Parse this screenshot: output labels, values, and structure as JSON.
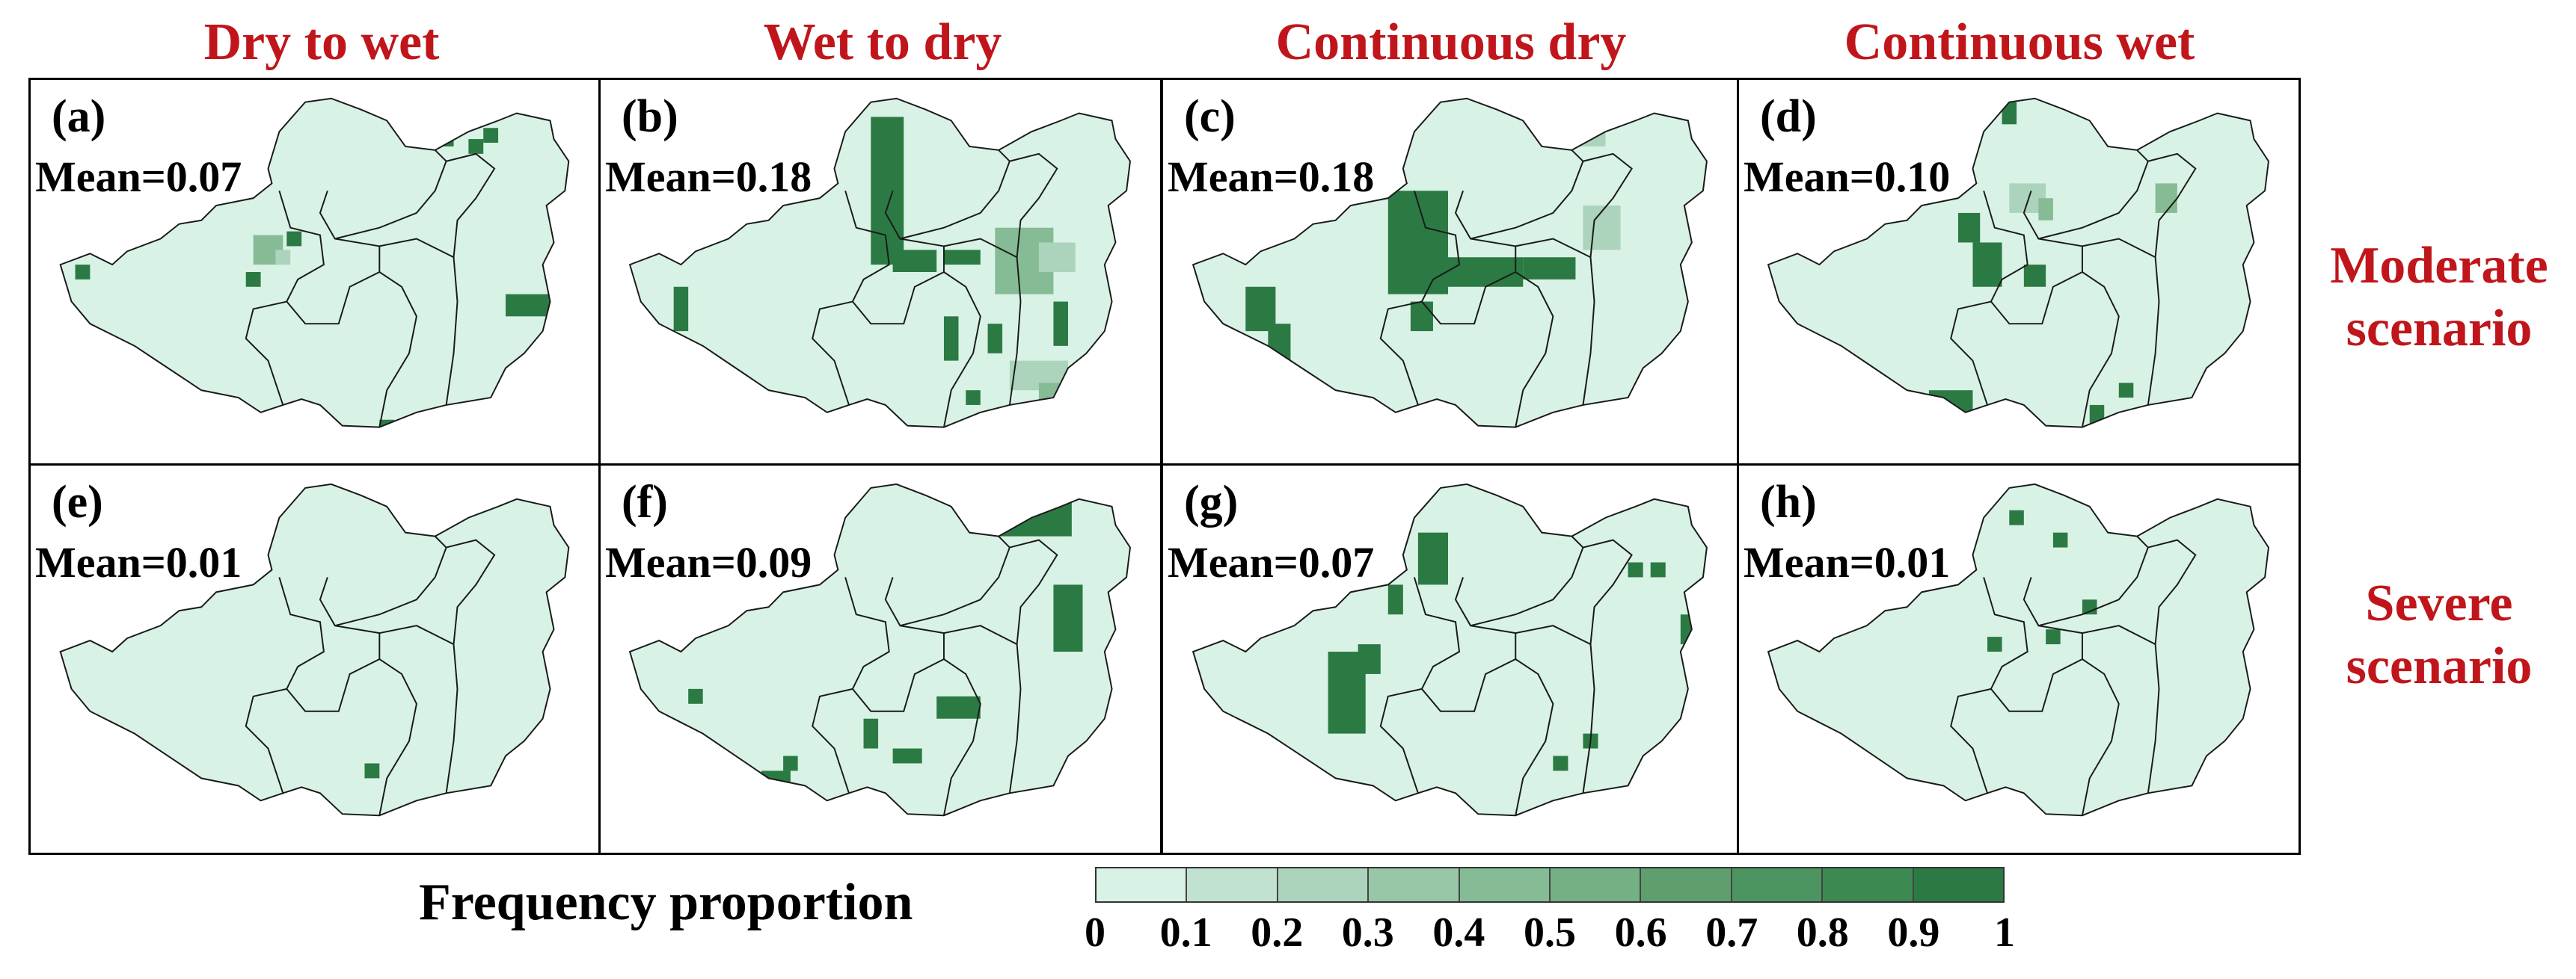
{
  "columns": [
    "Dry to wet",
    "Wet to dry",
    "Continuous dry",
    "Continuous wet"
  ],
  "rows": [
    "Moderate\nscenario",
    "Severe\nscenario"
  ],
  "panels": [
    {
      "label": "(a)",
      "mean": "Mean=0.07"
    },
    {
      "label": "(b)",
      "mean": "Mean=0.18"
    },
    {
      "label": "(c)",
      "mean": "Mean=0.18"
    },
    {
      "label": "(d)",
      "mean": "Mean=0.10"
    },
    {
      "label": "(e)",
      "mean": "Mean=0.01"
    },
    {
      "label": "(f)",
      "mean": "Mean=0.09"
    },
    {
      "label": "(g)",
      "mean": "Mean=0.07"
    },
    {
      "label": "(h)",
      "mean": "Mean=0.01"
    }
  ],
  "legend": {
    "title": "Frequency proportion",
    "ticks": [
      "0",
      "0.1",
      "0.2",
      "0.3",
      "0.4",
      "0.5",
      "0.6",
      "0.7",
      "0.8",
      "0.9",
      "1"
    ],
    "colors": [
      "#d9f2e6",
      "#c2e2d1",
      "#acd3bb",
      "#97c7a6",
      "#86bc95",
      "#74b084",
      "#5f9f6e",
      "#4c9560",
      "#3c8952",
      "#2c7a43"
    ]
  },
  "colors": {
    "land": "#d9f2e6",
    "title_red": "#c0161b",
    "hot": "#2c7a43",
    "mid": "#86bc95",
    "light": "#acd3bb"
  }
}
